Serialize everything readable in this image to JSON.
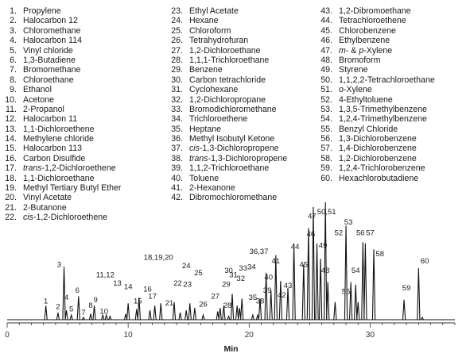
{
  "legend": {
    "columns": [
      [
        {
          "n": "1.",
          "t": "Propylene"
        },
        {
          "n": "2.",
          "t": "Halocarbon 12"
        },
        {
          "n": "3.",
          "t": "Chloromethane"
        },
        {
          "n": "4.",
          "t": "Halocarbon 114"
        },
        {
          "n": "5.",
          "t": "Vinyl chloride"
        },
        {
          "n": "6.",
          "t": "1,3-Butadiene"
        },
        {
          "n": "7.",
          "t": "Bromomethane"
        },
        {
          "n": "8.",
          "t": "Chloroethane"
        },
        {
          "n": "9.",
          "t": "Ethanol"
        },
        {
          "n": "10.",
          "t": "Acetone"
        },
        {
          "n": "11.",
          "t": "2-Propanol"
        },
        {
          "n": "12.",
          "t": "Halocarbon 11"
        },
        {
          "n": "13.",
          "t": "1,1-Dichloroethene"
        },
        {
          "n": "14.",
          "t": "Methylene chloride"
        },
        {
          "n": "15.",
          "t": "Halocarbon 113"
        },
        {
          "n": "16.",
          "t": "Carbon Disulfide"
        },
        {
          "n": "17.",
          "t": "trans-1,2-Dichloroethene",
          "i": "trans",
          "r": "-1,2-Dichloroethene"
        },
        {
          "n": "18.",
          "t": "1,1-Dichloroethane"
        },
        {
          "n": "19.",
          "t": "Methyl Tertiary Butyl Ether"
        },
        {
          "n": "20.",
          "t": "Vinyl Acetate"
        },
        {
          "n": "21.",
          "t": "2-Butanone"
        },
        {
          "n": "22.",
          "t": "cis-1,2-Dichloroethene",
          "i": "cis",
          "r": "-1,2-Dichloroethene"
        }
      ],
      [
        {
          "n": "23.",
          "t": "Ethyl Acetate"
        },
        {
          "n": "24.",
          "t": "Hexane"
        },
        {
          "n": "25.",
          "t": "Chloroform"
        },
        {
          "n": "26.",
          "t": "Tetrahydrofuran"
        },
        {
          "n": "27.",
          "t": "1,2-Dichloroethane"
        },
        {
          "n": "28.",
          "t": "1,1,1-Trichloroethane"
        },
        {
          "n": "29.",
          "t": "Benzene"
        },
        {
          "n": "30.",
          "t": "Carbon tetrachloride"
        },
        {
          "n": "31.",
          "t": "Cyclohexane"
        },
        {
          "n": "32.",
          "t": "1,2-Dichloropropane"
        },
        {
          "n": "33.",
          "t": "Bromodichloromethane"
        },
        {
          "n": "34.",
          "t": "Trichloroethene"
        },
        {
          "n": "35.",
          "t": "Heptane"
        },
        {
          "n": "36.",
          "t": "Methyl Isobutyl Ketone"
        },
        {
          "n": "37.",
          "t": "cis-1,3-Dichloropropene",
          "i": "cis",
          "r": "-1,3-Dichloropropene"
        },
        {
          "n": "38.",
          "t": "trans-1,3-Dichloropropene",
          "i": "trans",
          "r": "-1,3-Dichloropropene"
        },
        {
          "n": "39.",
          "t": "1,1,2-Trichloroethane"
        },
        {
          "n": "40.",
          "t": "Toluene"
        },
        {
          "n": "41.",
          "t": "2-Hexanone"
        },
        {
          "n": "42.",
          "t": "Dibromochloromethane"
        }
      ],
      [
        {
          "n": "43.",
          "t": "1,2-Dibromoethane"
        },
        {
          "n": "44.",
          "t": "Tetrachloroethene"
        },
        {
          "n": "45.",
          "t": "Chlorobenzene"
        },
        {
          "n": "46.",
          "t": "Ethylbenzene"
        },
        {
          "n": "47.",
          "t": "m- & p-Xylene",
          "i": "m",
          "r": "- & ",
          "i2": "p",
          "r2": "-Xylene"
        },
        {
          "n": "48.",
          "t": "Bromoform"
        },
        {
          "n": "49.",
          "t": "Styrene"
        },
        {
          "n": "50.",
          "t": "1,1,2,2-Tetrachloroethane"
        },
        {
          "n": "51.",
          "t": "o-Xylene",
          "i": "o",
          "r": "-Xylene"
        },
        {
          "n": "52.",
          "t": "4-Ethyltoluene"
        },
        {
          "n": "53.",
          "t": "1,3,5-Trimethylbenzene"
        },
        {
          "n": "54.",
          "t": "1,2,4-Trimethylbenzene"
        },
        {
          "n": "55.",
          "t": "Benzyl Chloride"
        },
        {
          "n": "56.",
          "t": "1,3-Dichlorobenzene"
        },
        {
          "n": "57.",
          "t": "1,4-Dichlorobenzene"
        },
        {
          "n": "58.",
          "t": "1,2-Dichlorobenzene"
        },
        {
          "n": "59.",
          "t": "1,2,4-Trichlorobenzene"
        },
        {
          "n": "60.",
          "t": "Hexachlorobutadiene"
        }
      ]
    ]
  },
  "chart_data": {
    "type": "line",
    "xlabel": "Min",
    "xlim": [
      0,
      37
    ],
    "ylim": [
      0,
      100
    ],
    "xticks": [
      0,
      10,
      20,
      30
    ],
    "grid": false,
    "peaks": [
      {
        "rt": 3.2,
        "h": 12
      },
      {
        "rt": 4.2,
        "h": 6
      },
      {
        "rt": 4.7,
        "h": 45
      },
      {
        "rt": 4.9,
        "h": 8
      },
      {
        "rt": 5.3,
        "h": 4
      },
      {
        "rt": 5.9,
        "h": 20
      },
      {
        "rt": 6.3,
        "h": 2
      },
      {
        "rt": 6.9,
        "h": 5
      },
      {
        "rt": 7.2,
        "h": 12
      },
      {
        "rt": 7.9,
        "h": 4
      },
      {
        "rt": 8.2,
        "h": 4
      },
      {
        "rt": 8.5,
        "h": 3
      },
      {
        "rt": 9.8,
        "h": 5
      },
      {
        "rt": 10.0,
        "h": 14
      },
      {
        "rt": 10.7,
        "h": 9
      },
      {
        "rt": 10.9,
        "h": 19
      },
      {
        "rt": 11.8,
        "h": 8
      },
      {
        "rt": 12.2,
        "h": 12
      },
      {
        "rt": 12.7,
        "h": 14
      },
      {
        "rt": 13.8,
        "h": 15
      },
      {
        "rt": 14.3,
        "h": 6
      },
      {
        "rt": 14.8,
        "h": 8
      },
      {
        "rt": 15.1,
        "h": 14
      },
      {
        "rt": 15.5,
        "h": 10
      },
      {
        "rt": 16.2,
        "h": 4
      },
      {
        "rt": 17.4,
        "h": 7
      },
      {
        "rt": 17.6,
        "h": 10
      },
      {
        "rt": 17.9,
        "h": 12
      },
      {
        "rt": 18.3,
        "h": 3
      },
      {
        "rt": 18.6,
        "h": 22
      },
      {
        "rt": 19.0,
        "h": 12
      },
      {
        "rt": 19.2,
        "h": 10
      },
      {
        "rt": 19.4,
        "h": 18
      },
      {
        "rt": 20.3,
        "h": 4
      },
      {
        "rt": 20.7,
        "h": 4
      },
      {
        "rt": 20.9,
        "h": 18
      },
      {
        "rt": 21.4,
        "h": 40
      },
      {
        "rt": 21.8,
        "h": 25
      },
      {
        "rt": 22.2,
        "h": 55
      },
      {
        "rt": 22.6,
        "h": 33
      },
      {
        "rt": 23.2,
        "h": 27
      },
      {
        "rt": 23.7,
        "h": 65
      },
      {
        "rt": 24.5,
        "h": 47
      },
      {
        "rt": 24.9,
        "h": 78
      },
      {
        "rt": 25.3,
        "h": 96
      },
      {
        "rt": 25.6,
        "h": 65
      },
      {
        "rt": 25.9,
        "h": 52
      },
      {
        "rt": 26.3,
        "h": 100
      },
      {
        "rt": 26.5,
        "h": 32
      },
      {
        "rt": 27.1,
        "h": 15
      },
      {
        "rt": 28.0,
        "h": 80
      },
      {
        "rt": 28.4,
        "h": 32
      },
      {
        "rt": 28.8,
        "h": 30
      },
      {
        "rt": 29.0,
        "h": 15
      },
      {
        "rt": 29.4,
        "h": 66
      },
      {
        "rt": 29.6,
        "h": 65
      },
      {
        "rt": 30.3,
        "h": 60
      },
      {
        "rt": 32.8,
        "h": 17
      },
      {
        "rt": 34.0,
        "h": 44
      },
      {
        "rt": 34.3,
        "h": 2
      }
    ],
    "labels": [
      {
        "text": "1",
        "rt": 3.2,
        "y": 14
      },
      {
        "text": "2",
        "rt": 4.2,
        "y": 9
      },
      {
        "text": "3",
        "rt": 4.3,
        "y": 45
      },
      {
        "text": "4",
        "rt": 4.9,
        "y": 17
      },
      {
        "text": "5",
        "rt": 5.3,
        "y": 7
      },
      {
        "text": "6",
        "rt": 5.8,
        "y": 23
      },
      {
        "text": "7",
        "rt": 6.3,
        "y": 4
      },
      {
        "text": "8",
        "rt": 6.9,
        "y": 10
      },
      {
        "text": "9",
        "rt": 7.3,
        "y": 15
      },
      {
        "text": "10",
        "rt": 8.0,
        "y": 5
      },
      {
        "text": "11,12",
        "rt": 8.1,
        "y": 36
      },
      {
        "text": "13",
        "rt": 9.1,
        "y": 29
      },
      {
        "text": "14",
        "rt": 10.0,
        "y": 26
      },
      {
        "text": "15",
        "rt": 10.8,
        "y": 14
      },
      {
        "text": "16",
        "rt": 11.6,
        "y": 24
      },
      {
        "text": "17",
        "rt": 12.0,
        "y": 18
      },
      {
        "text": "18,19,20",
        "rt": 12.5,
        "y": 51
      },
      {
        "text": "21",
        "rt": 13.4,
        "y": 12
      },
      {
        "text": "22",
        "rt": 14.1,
        "y": 29
      },
      {
        "text": "23",
        "rt": 14.9,
        "y": 28
      },
      {
        "text": "24",
        "rt": 14.8,
        "y": 44
      },
      {
        "text": "25",
        "rt": 15.8,
        "y": 38
      },
      {
        "text": "26",
        "rt": 16.2,
        "y": 11
      },
      {
        "text": "27",
        "rt": 17.2,
        "y": 18
      },
      {
        "text": "28",
        "rt": 18.2,
        "y": 10
      },
      {
        "text": "29",
        "rt": 18.1,
        "y": 28
      },
      {
        "text": "30",
        "rt": 18.3,
        "y": 40
      },
      {
        "text": "31",
        "rt": 18.7,
        "y": 36
      },
      {
        "text": "32",
        "rt": 19.3,
        "y": 33
      },
      {
        "text": "33",
        "rt": 19.5,
        "y": 42
      },
      {
        "text": "34",
        "rt": 20.2,
        "y": 43
      },
      {
        "text": "35",
        "rt": 20.3,
        "y": 17
      },
      {
        "text": "36,37",
        "rt": 20.8,
        "y": 56
      },
      {
        "text": "38",
        "rt": 20.9,
        "y": 14
      },
      {
        "text": "39",
        "rt": 21.5,
        "y": 23
      },
      {
        "text": "40",
        "rt": 21.6,
        "y": 34
      },
      {
        "text": "41",
        "rt": 22.2,
        "y": 48
      },
      {
        "text": "42",
        "rt": 22.7,
        "y": 19
      },
      {
        "text": "43",
        "rt": 23.2,
        "y": 27
      },
      {
        "text": "44",
        "rt": 23.8,
        "y": 60
      },
      {
        "text": "45",
        "rt": 24.5,
        "y": 45
      },
      {
        "text": "46",
        "rt": 25.1,
        "y": 71
      },
      {
        "text": "47",
        "rt": 25.2,
        "y": 86
      },
      {
        "text": "48",
        "rt": 26.3,
        "y": 40
      },
      {
        "text": "49",
        "rt": 26.1,
        "y": 61
      },
      {
        "text": "50,51",
        "rt": 26.4,
        "y": 90
      },
      {
        "text": "52",
        "rt": 27.4,
        "y": 72
      },
      {
        "text": "53",
        "rt": 28.2,
        "y": 81
      },
      {
        "text": "54",
        "rt": 28.8,
        "y": 40
      },
      {
        "text": "55",
        "rt": 28.0,
        "y": 22
      },
      {
        "text": "56",
        "rt": 29.2,
        "y": 72
      },
      {
        "text": "57",
        "rt": 30.0,
        "y": 72
      },
      {
        "text": "58",
        "rt": 30.8,
        "y": 54
      },
      {
        "text": "59",
        "rt": 33.0,
        "y": 25
      },
      {
        "text": "60",
        "rt": 34.5,
        "y": 48
      }
    ]
  }
}
